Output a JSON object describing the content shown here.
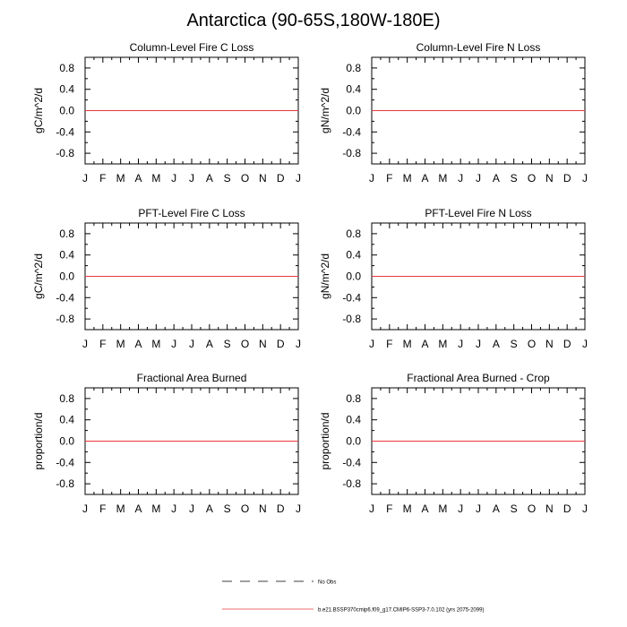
{
  "title": "Antarctica (90-65S,180W-180E)",
  "chart_data": [
    {
      "type": "line",
      "title": "Column-Level Fire C Loss",
      "ylabel": "gC/m^2/d",
      "xlabel": "",
      "categories": [
        "J",
        "F",
        "M",
        "A",
        "M",
        "J",
        "J",
        "A",
        "S",
        "O",
        "N",
        "D",
        "J"
      ],
      "yticks": [
        "0.8",
        "0.4",
        "0.0",
        "-0.4",
        "-0.8"
      ],
      "ylim": [
        -1,
        1
      ],
      "series": [
        {
          "name": "b.e21.BSSP370cmip6.f09_g17.CMIP6-SSP3-7.0.102 (yrs 2075-2099)",
          "values": [
            0,
            0,
            0,
            0,
            0,
            0,
            0,
            0,
            0,
            0,
            0,
            0,
            0
          ],
          "color": "#e8373d"
        }
      ]
    },
    {
      "type": "line",
      "title": "Column-Level Fire N Loss",
      "ylabel": "gN/m^2/d",
      "xlabel": "",
      "categories": [
        "J",
        "F",
        "M",
        "A",
        "M",
        "J",
        "J",
        "A",
        "S",
        "O",
        "N",
        "D",
        "J"
      ],
      "yticks": [
        "0.8",
        "0.4",
        "0.0",
        "-0.4",
        "-0.8"
      ],
      "ylim": [
        -1,
        1
      ],
      "series": [
        {
          "name": "b.e21.BSSP370cmip6.f09_g17.CMIP6-SSP3-7.0.102 (yrs 2075-2099)",
          "values": [
            0,
            0,
            0,
            0,
            0,
            0,
            0,
            0,
            0,
            0,
            0,
            0,
            0
          ],
          "color": "#e8373d"
        }
      ]
    },
    {
      "type": "line",
      "title": "PFT-Level Fire C Loss",
      "ylabel": "gC/m^2/d",
      "xlabel": "",
      "categories": [
        "J",
        "F",
        "M",
        "A",
        "M",
        "J",
        "J",
        "A",
        "S",
        "O",
        "N",
        "D",
        "J"
      ],
      "yticks": [
        "0.8",
        "0.4",
        "0.0",
        "-0.4",
        "-0.8"
      ],
      "ylim": [
        -1,
        1
      ],
      "series": [
        {
          "name": "b.e21.BSSP370cmip6.f09_g17.CMIP6-SSP3-7.0.102 (yrs 2075-2099)",
          "values": [
            0,
            0,
            0,
            0,
            0,
            0,
            0,
            0,
            0,
            0,
            0,
            0,
            0
          ],
          "color": "#e8373d"
        }
      ]
    },
    {
      "type": "line",
      "title": "PFT-Level Fire N Loss",
      "ylabel": "gN/m^2/d",
      "xlabel": "",
      "categories": [
        "J",
        "F",
        "M",
        "A",
        "M",
        "J",
        "J",
        "A",
        "S",
        "O",
        "N",
        "D",
        "J"
      ],
      "yticks": [
        "0.8",
        "0.4",
        "0.0",
        "-0.4",
        "-0.8"
      ],
      "ylim": [
        -1,
        1
      ],
      "series": [
        {
          "name": "b.e21.BSSP370cmip6.f09_g17.CMIP6-SSP3-7.0.102 (yrs 2075-2099)",
          "values": [
            0,
            0,
            0,
            0,
            0,
            0,
            0,
            0,
            0,
            0,
            0,
            0,
            0
          ],
          "color": "#e8373d"
        }
      ]
    },
    {
      "type": "line",
      "title": "Fractional Area Burned",
      "ylabel": "proportion/d",
      "xlabel": "",
      "categories": [
        "J",
        "F",
        "M",
        "A",
        "M",
        "J",
        "J",
        "A",
        "S",
        "O",
        "N",
        "D",
        "J"
      ],
      "yticks": [
        "0.8",
        "0.4",
        "0.0",
        "-0.4",
        "-0.8"
      ],
      "ylim": [
        -1,
        1
      ],
      "series": [
        {
          "name": "b.e21.BSSP370cmip6.f09_g17.CMIP6-SSP3-7.0.102 (yrs 2075-2099)",
          "values": [
            0,
            0,
            0,
            0,
            0,
            0,
            0,
            0,
            0,
            0,
            0,
            0,
            0
          ],
          "color": "#e8373d"
        }
      ]
    },
    {
      "type": "line",
      "title": "Fractional Area Burned - Crop",
      "ylabel": "proportion/d",
      "xlabel": "",
      "categories": [
        "J",
        "F",
        "M",
        "A",
        "M",
        "J",
        "J",
        "A",
        "S",
        "O",
        "N",
        "D",
        "J"
      ],
      "yticks": [
        "0.8",
        "0.4",
        "0.0",
        "-0.4",
        "-0.8"
      ],
      "ylim": [
        -1,
        1
      ],
      "series": [
        {
          "name": "b.e21.BSSP370cmip6.f09_g17.CMIP6-SSP3-7.0.102 (yrs 2075-2099)",
          "values": [
            0,
            0,
            0,
            0,
            0,
            0,
            0,
            0,
            0,
            0,
            0,
            0,
            0
          ],
          "color": "#e8373d"
        }
      ]
    }
  ],
  "legend": {
    "entries": [
      {
        "label": "No Obs",
        "style": "dashed",
        "color": "#000000"
      },
      {
        "label": "b.e21.BSSP370cmip6.f09_g17.CMIP6-SSP3-7.0.102 (yrs 2075-2099)",
        "style": "solid",
        "color": "#e8373d"
      }
    ]
  }
}
